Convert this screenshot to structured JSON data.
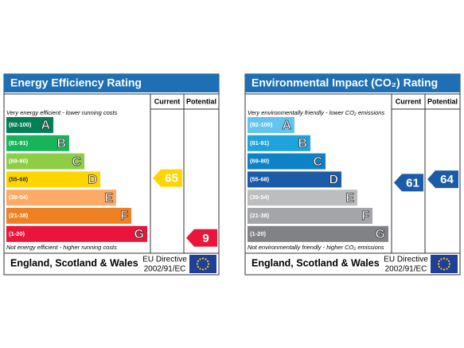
{
  "panels": [
    {
      "title": "Energy Efficiency Rating",
      "headers": [
        "Current",
        "Potential"
      ],
      "top_note": "Very energy efficient - lower running costs",
      "bottom_note": "Not energy efficient - higher running costs",
      "bands": [
        {
          "range": "(92-100)",
          "letter": "A",
          "color": "#008054"
        },
        {
          "range": "(81-91)",
          "letter": "B",
          "color": "#19b459"
        },
        {
          "range": "(69-80)",
          "letter": "C",
          "color": "#8dce46"
        },
        {
          "range": "(55-68)",
          "letter": "D",
          "color": "#ffd500"
        },
        {
          "range": "(39-54)",
          "letter": "E",
          "color": "#fcaa65"
        },
        {
          "range": "(21-38)",
          "letter": "F",
          "color": "#ef8023"
        },
        {
          "range": "(1-20)",
          "letter": "G",
          "color": "#e9153b"
        }
      ],
      "current": 65,
      "potential": 9,
      "footer": "England, Scotland & Wales",
      "directive": [
        "EU Directive",
        "2002/91/EC"
      ]
    },
    {
      "title": "Environmental Impact (CO₂) Rating",
      "headers": [
        "Current",
        "Potential"
      ],
      "top_note": "Very environmentally friendly - lower CO₂ emissions",
      "bottom_note": "Not environmentally friendly - higher CO₂ emissions",
      "bands": [
        {
          "range": "(92-100)",
          "letter": "A",
          "color": "#63c5ef"
        },
        {
          "range": "(81-91)",
          "letter": "B",
          "color": "#1ea3dd"
        },
        {
          "range": "(69-80)",
          "letter": "C",
          "color": "#0f82c5"
        },
        {
          "range": "(55-68)",
          "letter": "D",
          "color": "#1b5ba8"
        },
        {
          "range": "(39-54)",
          "letter": "E",
          "color": "#bbbdbf"
        },
        {
          "range": "(21-38)",
          "letter": "F",
          "color": "#a3a5a8"
        },
        {
          "range": "(1-20)",
          "letter": "G",
          "color": "#808285"
        }
      ],
      "current": 61,
      "potential": 64,
      "footer": "England, Scotland & Wales",
      "directive": [
        "EU Directive",
        "2002/91/EC"
      ]
    }
  ]
}
